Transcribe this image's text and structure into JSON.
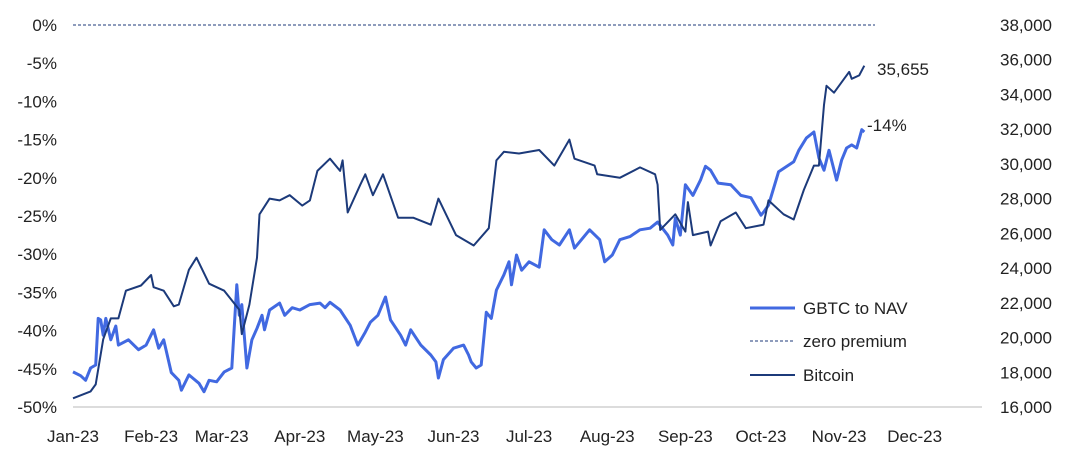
{
  "chart_data": {
    "type": "line",
    "title": "",
    "xlabel": "",
    "ylabel_left": "",
    "ylabel_right": "",
    "x_tick_labels": [
      "Jan-23",
      "Feb-23",
      "Mar-23",
      "Apr-23",
      "May-23",
      "Jun-23",
      "Jul-23",
      "Aug-23",
      "Sep-23",
      "Oct-23",
      "Nov-23",
      "Dec-23"
    ],
    "x_tick_dates": [
      "2023-01-01",
      "2023-02-01",
      "2023-03-01",
      "2023-04-01",
      "2023-05-01",
      "2023-06-01",
      "2023-07-01",
      "2023-08-01",
      "2023-09-01",
      "2023-10-01",
      "2023-11-01",
      "2023-12-01"
    ],
    "y_left": {
      "ylim": [
        -50,
        0
      ],
      "ticks": [
        0,
        -5,
        -10,
        -15,
        -20,
        -25,
        -30,
        -35,
        -40,
        -45,
        -50
      ],
      "tick_labels": [
        "0%",
        "-5%",
        "-10%",
        "-15%",
        "-20%",
        "-25%",
        "-30%",
        "-35%",
        "-40%",
        "-45%",
        "-50%"
      ]
    },
    "y_right": {
      "ylim": [
        16000,
        38000
      ],
      "ticks": [
        38000,
        36000,
        34000,
        32000,
        30000,
        28000,
        26000,
        24000,
        22000,
        20000,
        18000,
        16000
      ],
      "tick_labels": [
        "38,000",
        "36,000",
        "34,000",
        "32,000",
        "30,000",
        "28,000",
        "26,000",
        "24,000",
        "22,000",
        "20,000",
        "18,000",
        "16,000"
      ]
    },
    "grid": false,
    "legend_position": "bottom-right",
    "legend": [
      "GBTC to NAV",
      "zero premium",
      "Bitcoin"
    ],
    "colors": {
      "gbtc": "#4169e1",
      "bitcoin": "#1c3a7a",
      "zero": "#1c3a7a",
      "axis": "#d0d0d0"
    },
    "annotations": {
      "bitcoin_last": "35,655",
      "gbtc_last": "-14%"
    },
    "series": [
      {
        "name": "GBTC to NAV",
        "axis": "left",
        "unit": "%",
        "points": [
          [
            "2023-01-01",
            -45.4
          ],
          [
            "2023-01-04",
            -45.9
          ],
          [
            "2023-01-06",
            -46.5
          ],
          [
            "2023-01-08",
            -44.9
          ],
          [
            "2023-01-10",
            -44.5
          ],
          [
            "2023-01-11",
            -38.4
          ],
          [
            "2023-01-12",
            -38.6
          ],
          [
            "2023-01-13",
            -40.6
          ],
          [
            "2023-01-14",
            -38.4
          ],
          [
            "2023-01-16",
            -41.2
          ],
          [
            "2023-01-18",
            -39.4
          ],
          [
            "2023-01-19",
            -41.9
          ],
          [
            "2023-01-23",
            -41.2
          ],
          [
            "2023-01-27",
            -42.5
          ],
          [
            "2023-01-30",
            -41.9
          ],
          [
            "2023-02-02",
            -39.9
          ],
          [
            "2023-02-04",
            -42.3
          ],
          [
            "2023-02-06",
            -41.2
          ],
          [
            "2023-02-09",
            -45.5
          ],
          [
            "2023-02-12",
            -46.5
          ],
          [
            "2023-02-13",
            -47.8
          ],
          [
            "2023-02-16",
            -45.8
          ],
          [
            "2023-02-20",
            -46.9
          ],
          [
            "2023-02-22",
            -48.0
          ],
          [
            "2023-02-24",
            -46.5
          ],
          [
            "2023-02-27",
            -46.7
          ],
          [
            "2023-03-02",
            -45.4
          ],
          [
            "2023-03-05",
            -44.9
          ],
          [
            "2023-03-07",
            -34.0
          ],
          [
            "2023-03-08",
            -38.0
          ],
          [
            "2023-03-09",
            -36.6
          ],
          [
            "2023-03-11",
            -44.9
          ],
          [
            "2023-03-13",
            -41.2
          ],
          [
            "2023-03-15",
            -39.7
          ],
          [
            "2023-03-17",
            -38.0
          ],
          [
            "2023-03-18",
            -39.9
          ],
          [
            "2023-03-20",
            -37.3
          ],
          [
            "2023-03-24",
            -36.4
          ],
          [
            "2023-03-26",
            -38.0
          ],
          [
            "2023-03-29",
            -37.0
          ],
          [
            "2023-04-01",
            -37.3
          ],
          [
            "2023-04-05",
            -36.6
          ],
          [
            "2023-04-09",
            -36.4
          ],
          [
            "2023-04-11",
            -37.0
          ],
          [
            "2023-04-13",
            -36.3
          ],
          [
            "2023-04-17",
            -37.3
          ],
          [
            "2023-04-21",
            -39.3
          ],
          [
            "2023-04-24",
            -41.9
          ],
          [
            "2023-04-27",
            -40.2
          ],
          [
            "2023-04-29",
            -38.9
          ],
          [
            "2023-05-02",
            -38.0
          ],
          [
            "2023-05-05",
            -35.6
          ],
          [
            "2023-05-07",
            -38.6
          ],
          [
            "2023-05-11",
            -40.6
          ],
          [
            "2023-05-13",
            -41.9
          ],
          [
            "2023-05-15",
            -39.9
          ],
          [
            "2023-05-19",
            -41.9
          ],
          [
            "2023-05-23",
            -43.2
          ],
          [
            "2023-05-25",
            -44.1
          ],
          [
            "2023-05-26",
            -46.2
          ],
          [
            "2023-05-28",
            -43.8
          ],
          [
            "2023-06-01",
            -42.3
          ],
          [
            "2023-06-05",
            -41.9
          ],
          [
            "2023-06-07",
            -43.2
          ],
          [
            "2023-06-08",
            -44.1
          ],
          [
            "2023-06-10",
            -44.9
          ],
          [
            "2023-06-12",
            -44.5
          ],
          [
            "2023-06-14",
            -37.6
          ],
          [
            "2023-06-16",
            -38.4
          ],
          [
            "2023-06-18",
            -34.7
          ],
          [
            "2023-06-21",
            -32.7
          ],
          [
            "2023-06-23",
            -31.0
          ],
          [
            "2023-06-24",
            -34.0
          ],
          [
            "2023-06-26",
            -30.1
          ],
          [
            "2023-06-28",
            -32.1
          ],
          [
            "2023-07-01",
            -31.0
          ],
          [
            "2023-07-05",
            -31.7
          ],
          [
            "2023-07-07",
            -26.8
          ],
          [
            "2023-07-10",
            -28.1
          ],
          [
            "2023-07-13",
            -28.8
          ],
          [
            "2023-07-17",
            -26.8
          ],
          [
            "2023-07-19",
            -29.2
          ],
          [
            "2023-07-25",
            -26.8
          ],
          [
            "2023-07-29",
            -28.1
          ],
          [
            "2023-07-31",
            -31.0
          ],
          [
            "2023-08-03",
            -30.1
          ],
          [
            "2023-08-06",
            -28.1
          ],
          [
            "2023-08-10",
            -27.7
          ],
          [
            "2023-08-14",
            -26.8
          ],
          [
            "2023-08-18",
            -26.6
          ],
          [
            "2023-08-21",
            -25.8
          ],
          [
            "2023-08-25",
            -27.5
          ],
          [
            "2023-08-27",
            -28.8
          ],
          [
            "2023-08-28",
            -25.3
          ],
          [
            "2023-08-30",
            -27.5
          ],
          [
            "2023-09-01",
            -20.9
          ],
          [
            "2023-09-04",
            -22.3
          ],
          [
            "2023-09-07",
            -20.3
          ],
          [
            "2023-09-09",
            -18.5
          ],
          [
            "2023-09-11",
            -19.0
          ],
          [
            "2023-09-14",
            -20.7
          ],
          [
            "2023-09-19",
            -20.9
          ],
          [
            "2023-09-23",
            -22.3
          ],
          [
            "2023-09-27",
            -22.6
          ],
          [
            "2023-10-01",
            -24.9
          ],
          [
            "2023-10-02",
            -24.5
          ],
          [
            "2023-10-04",
            -23.6
          ],
          [
            "2023-10-08",
            -19.2
          ],
          [
            "2023-10-14",
            -17.9
          ],
          [
            "2023-10-16",
            -16.4
          ],
          [
            "2023-10-19",
            -14.8
          ],
          [
            "2023-10-22",
            -14.0
          ],
          [
            "2023-10-24",
            -17.4
          ],
          [
            "2023-10-26",
            -19.0
          ],
          [
            "2023-10-28",
            -16.4
          ],
          [
            "2023-10-31",
            -20.3
          ],
          [
            "2023-11-02",
            -17.7
          ],
          [
            "2023-11-04",
            -16.1
          ],
          [
            "2023-11-06",
            -15.7
          ],
          [
            "2023-11-08",
            -16.1
          ],
          [
            "2023-11-10",
            -13.7
          ],
          [
            "2023-11-11",
            -14.0
          ]
        ]
      },
      {
        "name": "zero premium",
        "axis": "left",
        "unit": "%",
        "points": [
          [
            "2023-01-01",
            0
          ],
          [
            "2023-11-11",
            0
          ]
        ]
      },
      {
        "name": "Bitcoin",
        "axis": "right",
        "unit": "USD",
        "points": [
          [
            "2023-01-01",
            16500
          ],
          [
            "2023-01-08",
            16900
          ],
          [
            "2023-01-10",
            17300
          ],
          [
            "2023-01-13",
            19900
          ],
          [
            "2023-01-16",
            21100
          ],
          [
            "2023-01-19",
            21100
          ],
          [
            "2023-01-22",
            22700
          ],
          [
            "2023-01-28",
            23000
          ],
          [
            "2023-02-01",
            23600
          ],
          [
            "2023-02-02",
            22900
          ],
          [
            "2023-02-06",
            22700
          ],
          [
            "2023-02-10",
            21800
          ],
          [
            "2023-02-12",
            21900
          ],
          [
            "2023-02-16",
            23900
          ],
          [
            "2023-02-19",
            24600
          ],
          [
            "2023-02-24",
            23100
          ],
          [
            "2023-03-02",
            22700
          ],
          [
            "2023-03-08",
            21600
          ],
          [
            "2023-03-09",
            20200
          ],
          [
            "2023-03-12",
            21900
          ],
          [
            "2023-03-15",
            24600
          ],
          [
            "2023-03-16",
            27100
          ],
          [
            "2023-03-20",
            28000
          ],
          [
            "2023-03-24",
            27900
          ],
          [
            "2023-03-28",
            28200
          ],
          [
            "2023-04-02",
            27600
          ],
          [
            "2023-04-05",
            27900
          ],
          [
            "2023-04-08",
            29600
          ],
          [
            "2023-04-13",
            30300
          ],
          [
            "2023-04-17",
            29600
          ],
          [
            "2023-04-18",
            30200
          ],
          [
            "2023-04-20",
            27200
          ],
          [
            "2023-04-25",
            28800
          ],
          [
            "2023-04-27",
            29400
          ],
          [
            "2023-04-30",
            28200
          ],
          [
            "2023-05-04",
            29400
          ],
          [
            "2023-05-10",
            26900
          ],
          [
            "2023-05-16",
            26900
          ],
          [
            "2023-05-23",
            26500
          ],
          [
            "2023-05-26",
            28000
          ],
          [
            "2023-06-02",
            25900
          ],
          [
            "2023-06-09",
            25300
          ],
          [
            "2023-06-15",
            26300
          ],
          [
            "2023-06-18",
            30200
          ],
          [
            "2023-06-21",
            30700
          ],
          [
            "2023-06-27",
            30600
          ],
          [
            "2023-07-05",
            30800
          ],
          [
            "2023-07-11",
            29900
          ],
          [
            "2023-07-17",
            31400
          ],
          [
            "2023-07-19",
            30300
          ],
          [
            "2023-07-27",
            29900
          ],
          [
            "2023-07-28",
            29400
          ],
          [
            "2023-08-06",
            29200
          ],
          [
            "2023-08-14",
            29800
          ],
          [
            "2023-08-20",
            29400
          ],
          [
            "2023-08-21",
            28800
          ],
          [
            "2023-08-22",
            26200
          ],
          [
            "2023-08-28",
            27100
          ],
          [
            "2023-09-01",
            26100
          ],
          [
            "2023-09-02",
            27800
          ],
          [
            "2023-09-04",
            25900
          ],
          [
            "2023-09-10",
            26100
          ],
          [
            "2023-09-11",
            25300
          ],
          [
            "2023-09-15",
            26700
          ],
          [
            "2023-09-21",
            27200
          ],
          [
            "2023-09-25",
            26300
          ],
          [
            "2023-10-02",
            26500
          ],
          [
            "2023-10-04",
            27900
          ],
          [
            "2023-10-10",
            27100
          ],
          [
            "2023-10-14",
            26800
          ],
          [
            "2023-10-18",
            28500
          ],
          [
            "2023-10-22",
            29900
          ],
          [
            "2023-10-24",
            29900
          ],
          [
            "2023-10-26",
            33400
          ],
          [
            "2023-10-27",
            34500
          ],
          [
            "2023-10-30",
            34100
          ],
          [
            "2023-11-03",
            34900
          ],
          [
            "2023-11-05",
            35300
          ],
          [
            "2023-11-06",
            34900
          ],
          [
            "2023-11-09",
            35100
          ],
          [
            "2023-11-11",
            35655
          ]
        ]
      }
    ]
  }
}
